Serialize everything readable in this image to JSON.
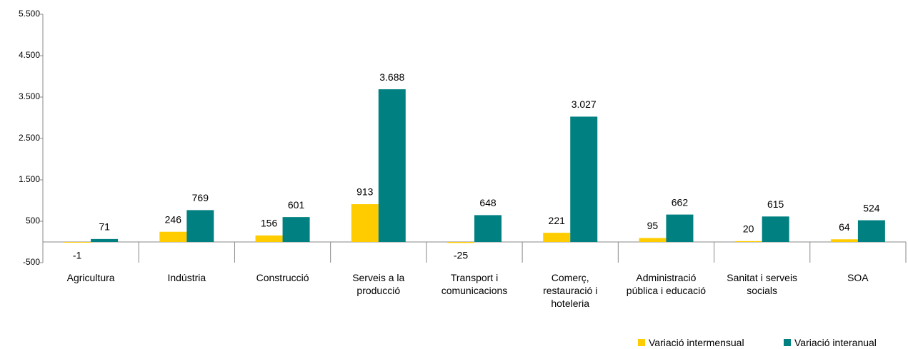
{
  "chart_data": {
    "type": "bar",
    "categories": [
      "Agricultura",
      "Indústria",
      "Construcció",
      "Serveis a la producció",
      "Transport i comunicacions",
      "Comerç, restauració i hoteleria",
      "Administració pública i educació",
      "Sanitat i serveis socials",
      "SOA"
    ],
    "series": [
      {
        "name": "Variació intermensual",
        "color": "#ffcc00",
        "values": [
          -1,
          246,
          156,
          913,
          -25,
          221,
          95,
          20,
          64
        ]
      },
      {
        "name": "Variació interanual",
        "color": "#008080",
        "values": [
          71,
          769,
          601,
          3688,
          648,
          3027,
          662,
          615,
          524
        ],
        "value_labels": [
          "71",
          "769",
          "601",
          "3.688",
          "648",
          "3.027",
          "662",
          "615",
          "524"
        ]
      }
    ],
    "ylim": [
      -500,
      5500
    ],
    "yticks": [
      -500,
      500,
      {
        "value": 1500,
        "label": "1.500"
      },
      {
        "value": 2500,
        "label": "2.500"
      },
      {
        "value": 3500,
        "label": "3.500"
      },
      {
        "value": 4500,
        "label": "4.500"
      },
      {
        "value": 5500,
        "label": "5.500"
      }
    ],
    "legend": "bottom-right"
  }
}
